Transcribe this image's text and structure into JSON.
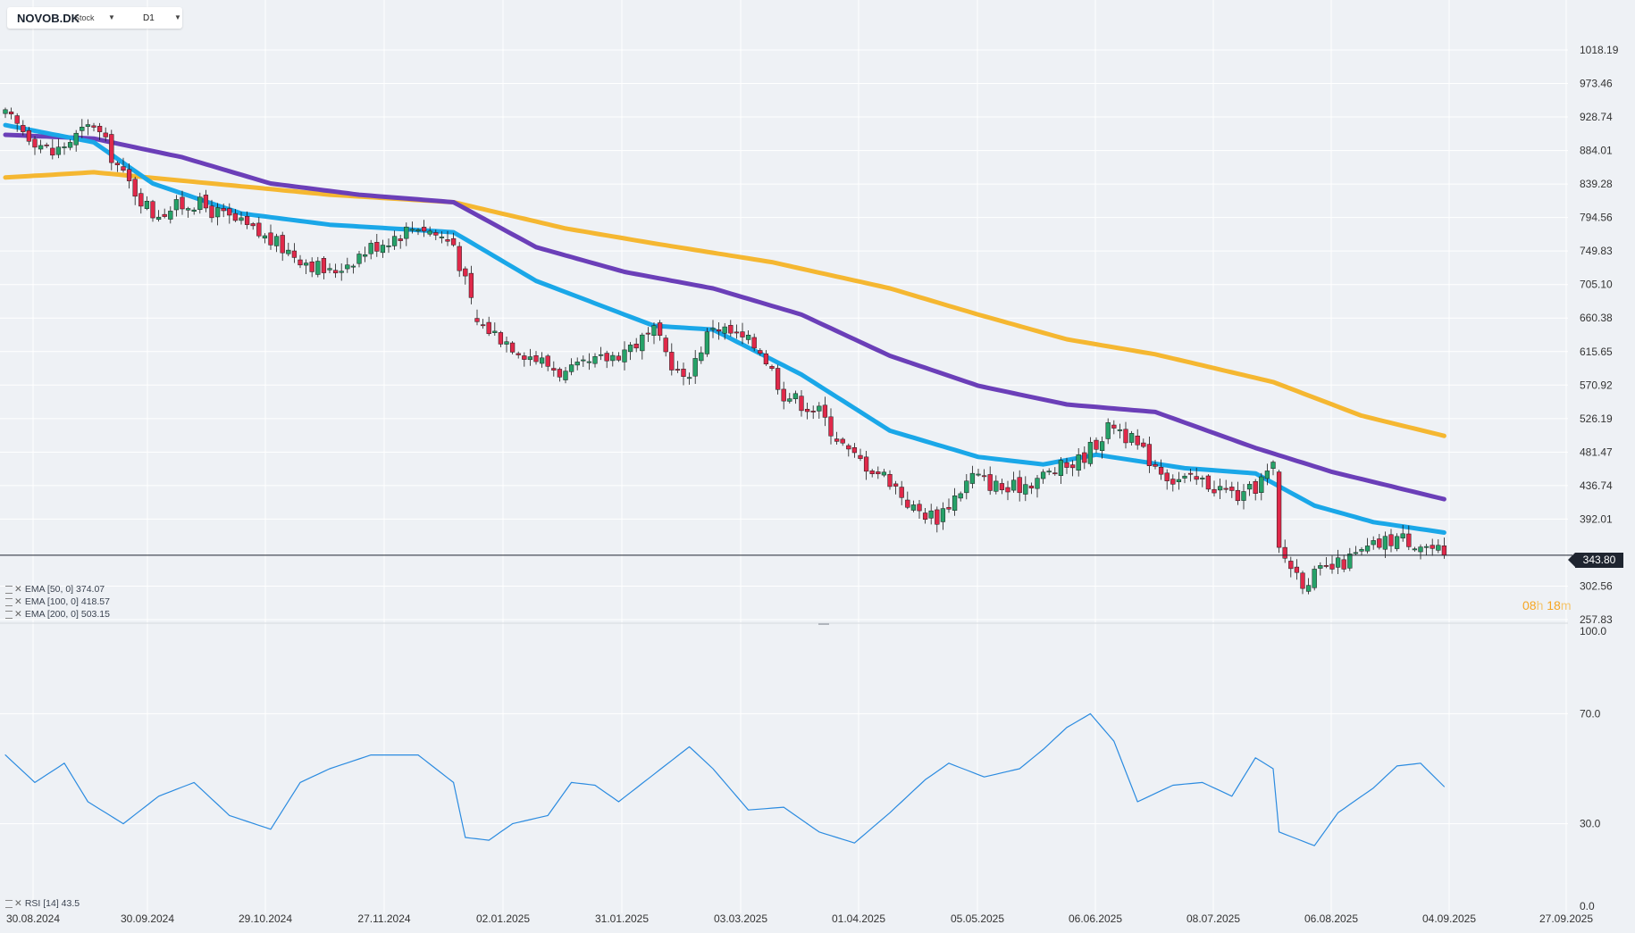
{
  "header": {
    "symbol": "NOVOB.DK",
    "type": "Stock",
    "timeframe": "D1"
  },
  "last_price_label": "343.80",
  "countdown": {
    "hours": "08",
    "h_unit": "h",
    "minutes": "18",
    "m_unit": "m"
  },
  "legend": {
    "ema50": "EMA [50, 0] 374.07",
    "ema100": "EMA [100, 0] 418.57",
    "ema200": "EMA [200, 0] 503.15",
    "rsi": "RSI [14] 43.5"
  },
  "colors": {
    "up": "#26a269",
    "down": "#e0294a",
    "ema50": "#1aa7e8",
    "ema100": "#6b3fb8",
    "ema200": "#f5b731",
    "rsi": "#2b8be0",
    "background": "#eef1f5",
    "grid": "#ffffff"
  },
  "chart_data": [
    {
      "type": "candlestick",
      "price_axis_ticks": [
        "1018.19",
        "973.46",
        "928.74",
        "884.01",
        "839.28",
        "794.56",
        "749.83",
        "705.10",
        "660.38",
        "615.65",
        "570.92",
        "526.19",
        "481.47",
        "436.74",
        "392.01",
        "302.56",
        "257.83"
      ],
      "price_axis_range": [
        257.83,
        1018.19
      ],
      "date_axis_labels": [
        "30.08.2024",
        "30.09.2024",
        "29.10.2024",
        "27.11.2024",
        "02.01.2025",
        "31.01.2025",
        "03.03.2025",
        "01.04.2025",
        "05.05.2025",
        "06.06.2025",
        "08.07.2025",
        "06.08.2025",
        "04.09.2025",
        "27.09.2025"
      ],
      "last_price": 343.8,
      "close_anchors": [
        [
          0,
          930
        ],
        [
          8,
          880
        ],
        [
          15,
          920
        ],
        [
          20,
          850
        ],
        [
          25,
          800
        ],
        [
          32,
          815
        ],
        [
          40,
          785
        ],
        [
          48,
          750
        ],
        [
          55,
          720
        ],
        [
          62,
          755
        ],
        [
          70,
          785
        ],
        [
          76,
          760
        ],
        [
          80,
          655
        ],
        [
          88,
          615
        ],
        [
          95,
          585
        ],
        [
          103,
          610
        ],
        [
          110,
          640
        ],
        [
          115,
          575
        ],
        [
          120,
          652
        ],
        [
          128,
          620
        ],
        [
          132,
          560
        ],
        [
          138,
          535
        ],
        [
          143,
          480
        ],
        [
          150,
          445
        ],
        [
          154,
          405
        ],
        [
          158,
          395
        ],
        [
          164,
          450
        ],
        [
          170,
          430
        ],
        [
          176,
          450
        ],
        [
          182,
          470
        ],
        [
          188,
          520
        ],
        [
          193,
          480
        ],
        [
          198,
          445
        ],
        [
          203,
          442
        ],
        [
          210,
          420
        ],
        [
          215,
          460
        ],
        [
          216,
          350
        ],
        [
          220,
          310
        ],
        [
          226,
          330
        ],
        [
          232,
          355
        ],
        [
          236,
          368
        ],
        [
          240,
          360
        ],
        [
          244,
          343.8
        ]
      ],
      "ema50_anchors": [
        [
          0,
          918
        ],
        [
          15,
          895
        ],
        [
          25,
          840
        ],
        [
          40,
          800
        ],
        [
          55,
          785
        ],
        [
          76,
          775
        ],
        [
          90,
          710
        ],
        [
          110,
          650
        ],
        [
          120,
          645
        ],
        [
          135,
          585
        ],
        [
          150,
          510
        ],
        [
          165,
          475
        ],
        [
          176,
          465
        ],
        [
          185,
          478
        ],
        [
          200,
          460
        ],
        [
          212,
          453
        ],
        [
          222,
          410
        ],
        [
          232,
          388
        ],
        [
          244,
          374.07
        ]
      ],
      "ema100_anchors": [
        [
          0,
          905
        ],
        [
          15,
          900
        ],
        [
          30,
          875
        ],
        [
          45,
          840
        ],
        [
          60,
          825
        ],
        [
          76,
          815
        ],
        [
          90,
          755
        ],
        [
          105,
          722
        ],
        [
          120,
          700
        ],
        [
          135,
          665
        ],
        [
          150,
          610
        ],
        [
          165,
          570
        ],
        [
          180,
          545
        ],
        [
          195,
          535
        ],
        [
          212,
          487
        ],
        [
          225,
          455
        ],
        [
          244,
          418.57
        ]
      ],
      "ema200_anchors": [
        [
          0,
          848
        ],
        [
          15,
          855
        ],
        [
          35,
          840
        ],
        [
          55,
          825
        ],
        [
          76,
          815
        ],
        [
          95,
          780
        ],
        [
          110,
          760
        ],
        [
          130,
          735
        ],
        [
          150,
          700
        ],
        [
          165,
          665
        ],
        [
          180,
          632
        ],
        [
          195,
          612
        ],
        [
          215,
          575
        ],
        [
          230,
          530
        ],
        [
          244,
          503.15
        ]
      ]
    },
    {
      "type": "line",
      "name": "RSI [14]",
      "y_axis_ticks": [
        "100.0",
        "70.0",
        "30.0",
        "0.0"
      ],
      "ylim": [
        0,
        100
      ],
      "rsi_anchors": [
        [
          0,
          55
        ],
        [
          5,
          45
        ],
        [
          10,
          52
        ],
        [
          14,
          38
        ],
        [
          20,
          30
        ],
        [
          26,
          40
        ],
        [
          32,
          45
        ],
        [
          38,
          33
        ],
        [
          45,
          28
        ],
        [
          50,
          45
        ],
        [
          55,
          50
        ],
        [
          62,
          55
        ],
        [
          70,
          55
        ],
        [
          76,
          45
        ],
        [
          78,
          25
        ],
        [
          82,
          24
        ],
        [
          86,
          30
        ],
        [
          92,
          33
        ],
        [
          96,
          45
        ],
        [
          100,
          44
        ],
        [
          104,
          38
        ],
        [
          110,
          48
        ],
        [
          116,
          58
        ],
        [
          120,
          50
        ],
        [
          126,
          35
        ],
        [
          132,
          36
        ],
        [
          138,
          27
        ],
        [
          144,
          23
        ],
        [
          150,
          34
        ],
        [
          156,
          46
        ],
        [
          160,
          52
        ],
        [
          166,
          47
        ],
        [
          172,
          50
        ],
        [
          176,
          57
        ],
        [
          180,
          65
        ],
        [
          184,
          70
        ],
        [
          188,
          60
        ],
        [
          192,
          38
        ],
        [
          198,
          44
        ],
        [
          203,
          45
        ],
        [
          208,
          40
        ],
        [
          212,
          54
        ],
        [
          215,
          50
        ],
        [
          216,
          27
        ],
        [
          222,
          22
        ],
        [
          226,
          34
        ],
        [
          232,
          43
        ],
        [
          236,
          51
        ],
        [
          240,
          52
        ],
        [
          244,
          43.5
        ]
      ]
    }
  ]
}
